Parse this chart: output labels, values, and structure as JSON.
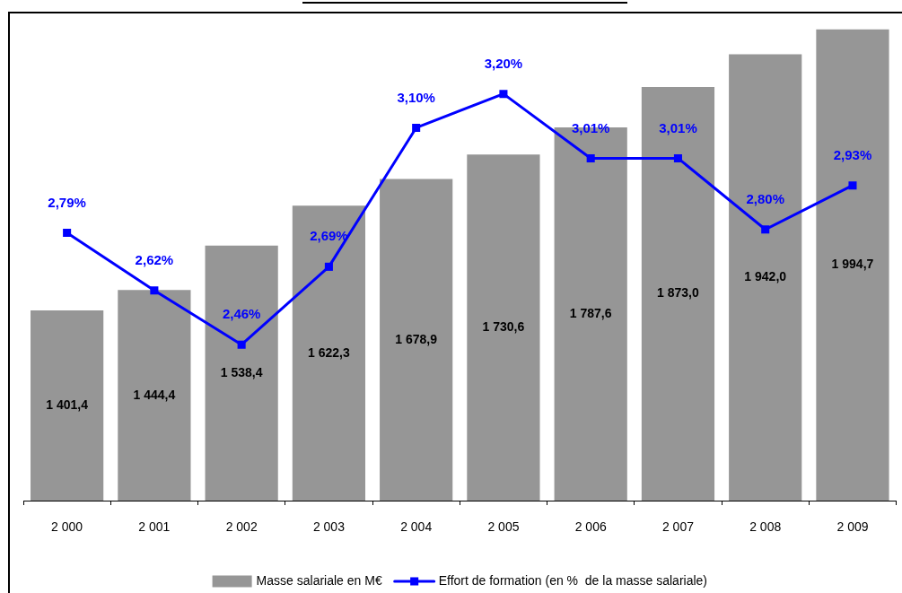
{
  "chart_data": {
    "type": "bar",
    "categories": [
      "2 000",
      "2 001",
      "2 002",
      "2 003",
      "2 004",
      "2 005",
      "2 006",
      "2 007",
      "2 008",
      "2 009"
    ],
    "series": [
      {
        "name": "Masse salariale en M€",
        "color": "#969696",
        "values": [
          1401.4,
          1444.4,
          1538.4,
          1622.3,
          1678.9,
          1730.6,
          1787.6,
          1873.0,
          1942.0,
          1994.7
        ],
        "value_labels": [
          "1 401,4",
          "1 444,4",
          "1 538,4",
          "1 622,3",
          "1 678,9",
          "1 730,6",
          "1 787,6",
          "1 873,0",
          "1 942,0",
          "1 994,7"
        ]
      },
      {
        "name": "Effort de formation (en %  de la masse salariale)",
        "type": "line",
        "axis": "y2",
        "color": "#0000ff",
        "values": [
          2.79,
          2.62,
          2.46,
          2.69,
          3.1,
          3.2,
          3.01,
          3.01,
          2.8,
          2.93
        ],
        "value_labels": [
          "2,79%",
          "2,62%",
          "2,46%",
          "2,69%",
          "3,10%",
          "3,20%",
          "3,01%",
          "3,01%",
          "2,80%",
          "2,93%"
        ]
      }
    ],
    "ylim": [
      1000,
      2030
    ],
    "y2lim": [
      2.0,
      3.44
    ],
    "tick_labels": "x",
    "marker": "square",
    "legend": "bottom"
  }
}
